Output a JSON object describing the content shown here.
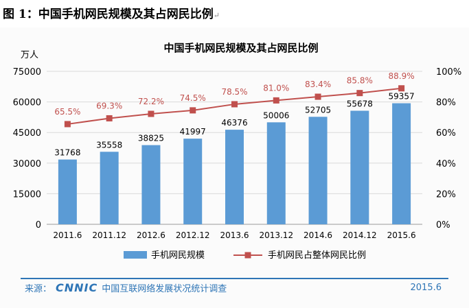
{
  "caption": "图 1：中国手机网民规模及其占网民比例",
  "footer": {
    "source_label": "来源：",
    "logo_text": "CNNIC",
    "org": "中国互联网络发展状况统计调查",
    "date": "2015.6"
  },
  "colors": {
    "bar": "#5b9bd5",
    "line": "#c0504d",
    "label_red": "#c0504d",
    "footer": "#2e75b6"
  },
  "chart_data": {
    "type": "bar",
    "title": "中国手机网民规模及其占网民比例",
    "y_unit": "万人",
    "categories": [
      "2011.6",
      "2011.12",
      "2012.6",
      "2012.12",
      "2013.6",
      "2013.12",
      "2014.6",
      "2014.12",
      "2015.6"
    ],
    "series": [
      {
        "name": "手机网民规模",
        "type": "bar",
        "axis": "left",
        "values": [
          31768,
          35558,
          38825,
          41997,
          46376,
          50006,
          52705,
          55678,
          59357
        ]
      },
      {
        "name": "手机网民占整体网民比例",
        "type": "line",
        "axis": "right",
        "values": [
          65.5,
          69.3,
          72.2,
          74.5,
          78.5,
          81.0,
          83.4,
          85.8,
          88.9
        ],
        "labels": [
          "65.5%",
          "69.3%",
          "72.2%",
          "74.5%",
          "78.5%",
          "81.0%",
          "83.4%",
          "85.8%",
          "88.9%"
        ]
      }
    ],
    "ylim_left": [
      0,
      75000
    ],
    "yticks_left": [
      "0",
      "15000",
      "30000",
      "45000",
      "60000",
      "75000"
    ],
    "ylim_right": [
      0,
      100
    ],
    "yticks_right": [
      "0%",
      "20%",
      "40%",
      "60%",
      "80%",
      "100%"
    ],
    "grid": true,
    "legend_position": "bottom"
  }
}
